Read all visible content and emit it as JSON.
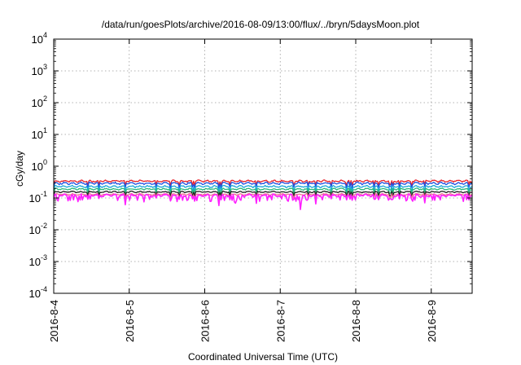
{
  "chart_data": {
    "type": "line",
    "title": "/data/run/goesPlots/archive/2016-08-09/13:00/flux/../bryn/5daysMoon.plot",
    "xlabel": "Coordinated Universal Time (UTC)",
    "ylabel": "cGy/day",
    "yscale": "log",
    "ylim": [
      0.0001,
      10000
    ],
    "xlim": [
      "2016-08-04",
      "2016-08-09 13:00"
    ],
    "grid": true,
    "xticks": [
      "2016-8-4",
      "2016-8-5",
      "2016-8-6",
      "2016-8-7",
      "2016-8-8",
      "2016-8-9"
    ],
    "yticks": [
      {
        "base": "10",
        "exp": "-4"
      },
      {
        "base": "10",
        "exp": "-3"
      },
      {
        "base": "10",
        "exp": "-2"
      },
      {
        "base": "10",
        "exp": "-1"
      },
      {
        "base": "10",
        "exp": "0"
      },
      {
        "base": "10",
        "exp": "1"
      },
      {
        "base": "10",
        "exp": "2"
      },
      {
        "base": "10",
        "exp": "3"
      },
      {
        "base": "10",
        "exp": "4"
      }
    ],
    "series": [
      {
        "color": "#e8202a",
        "base": 0.34,
        "spread": 0.06,
        "dips": []
      },
      {
        "color": "#1e50e0",
        "base": 0.29,
        "spread": 0.06,
        "dips": []
      },
      {
        "color": "#18a8d8",
        "base": 0.23,
        "spread": 0.04,
        "dips": []
      },
      {
        "color": "#2ab87a",
        "base": 0.19,
        "spread": 0.03,
        "dips": []
      },
      {
        "color": "#202020",
        "base": 0.155,
        "spread": 0.02,
        "dips": []
      },
      {
        "color": "#f07090",
        "base": 0.13,
        "spread": 0.02,
        "dips": []
      },
      {
        "color": "#ff20ff",
        "base": 0.12,
        "spread": 0.03,
        "dips": [
          {
            "x": 2.4,
            "y": 0.045
          },
          {
            "x": 3.27,
            "y": 0.028
          },
          {
            "x": 3.1,
            "y": 0.06
          },
          {
            "x": 1.55,
            "y": 0.07
          }
        ]
      }
    ]
  }
}
